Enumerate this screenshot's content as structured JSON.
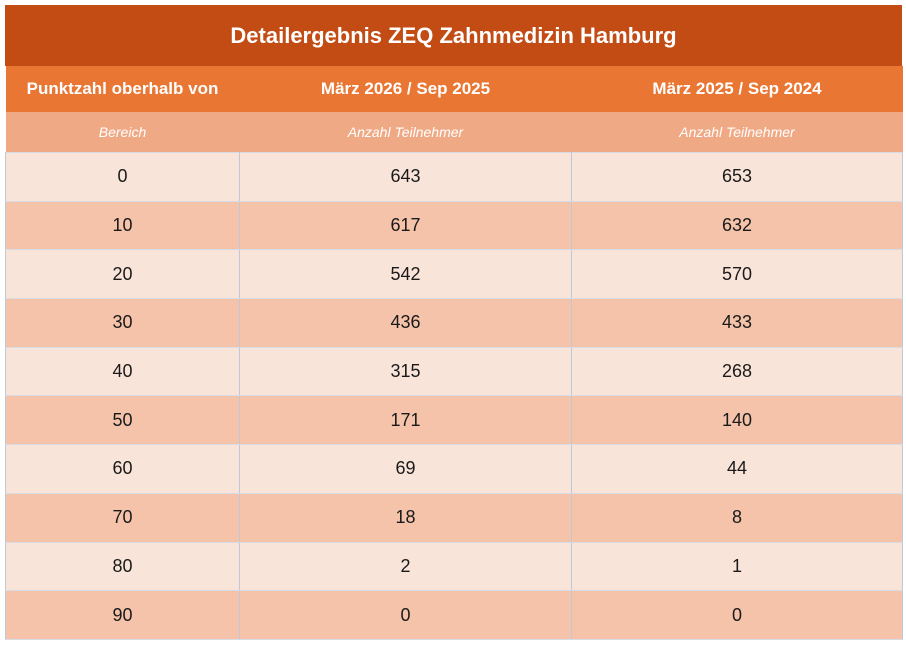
{
  "title": "Detailergebnis ZEQ Zahnmedizin Hamburg",
  "columns": [
    "Punktzahl oberhalb von",
    "März 2026 / Sep 2025",
    "März 2025 / Sep 2024"
  ],
  "subheaders": [
    "Bereich",
    "Anzahl Teilnehmer",
    "Anzahl Teilnehmer"
  ],
  "rows": [
    [
      "0",
      "643",
      "653"
    ],
    [
      "10",
      "617",
      "632"
    ],
    [
      "20",
      "542",
      "570"
    ],
    [
      "30",
      "436",
      "433"
    ],
    [
      "40",
      "315",
      "268"
    ],
    [
      "50",
      "171",
      "140"
    ],
    [
      "60",
      "69",
      "44"
    ],
    [
      "70",
      "18",
      "8"
    ],
    [
      "80",
      "2",
      "1"
    ],
    [
      "90",
      "0",
      "0"
    ]
  ],
  "colors": {
    "title_bg": "#c24c14",
    "header_bg": "#e97633",
    "subheader_bg": "#f0a985",
    "row_light": "#f9e4d9",
    "row_dark": "#f4c3a9"
  }
}
